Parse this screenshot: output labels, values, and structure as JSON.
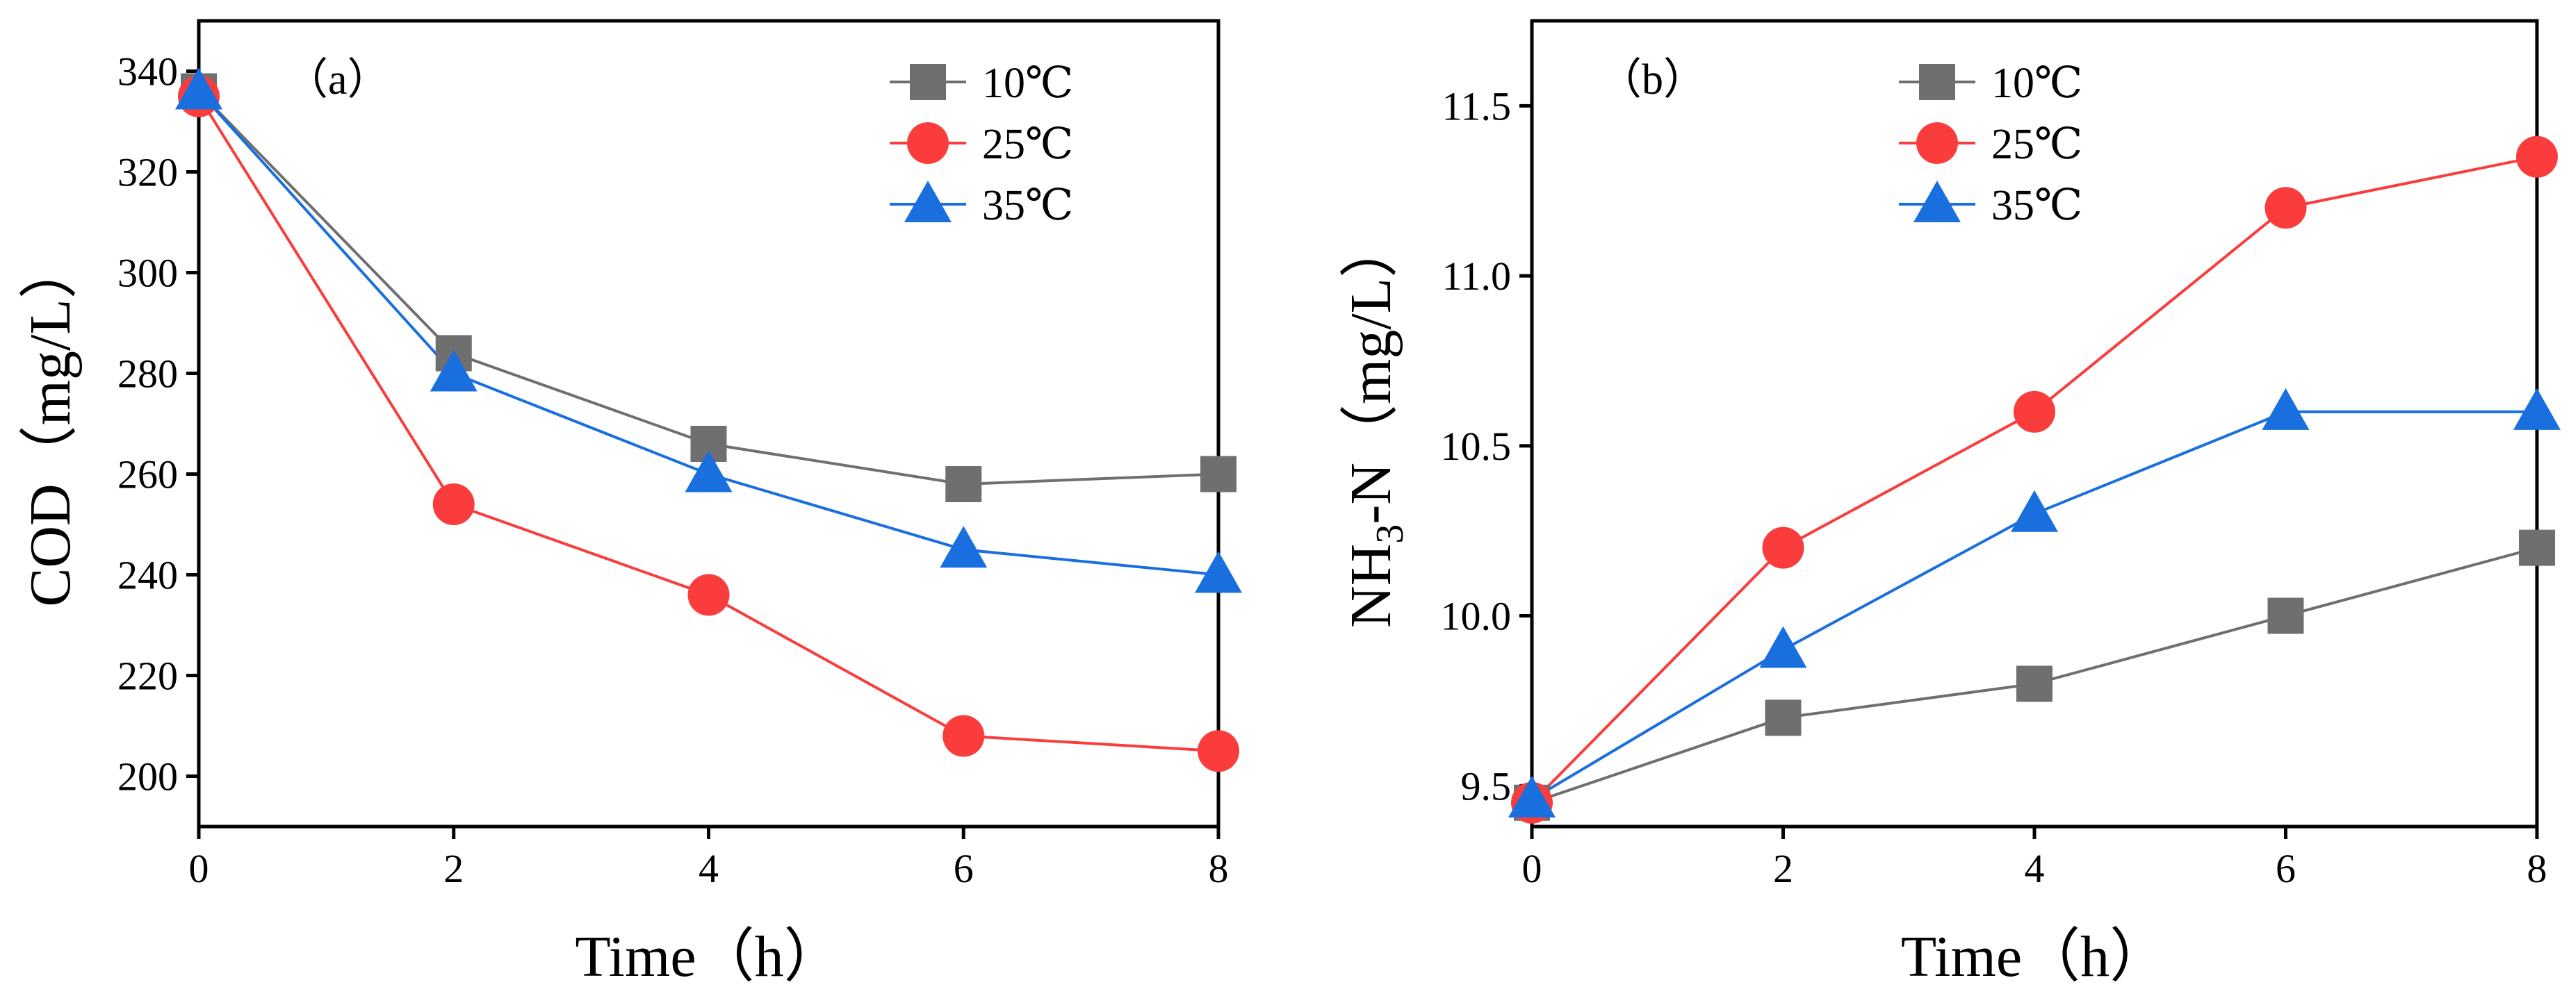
{
  "colors": {
    "10C": "#6f6f6f",
    "25C": "#fa3c3c",
    "35C": "#1a6fdf"
  },
  "chart_data": [
    {
      "type": "line",
      "panel_label": "（a）",
      "xlabel": "Time（h）",
      "ylabel": "COD（mg/L）",
      "xlim": [
        0,
        8
      ],
      "ylim": [
        190,
        350
      ],
      "x_ticks": [
        0,
        2,
        4,
        6,
        8
      ],
      "y_ticks": [
        200,
        220,
        240,
        260,
        280,
        300,
        320,
        340
      ],
      "legend_position": "top-right",
      "x": [
        0,
        2,
        4,
        6,
        8
      ],
      "series": [
        {
          "name": "10℃",
          "marker": "square",
          "color": "#6f6f6f",
          "values": [
            336,
            284,
            266,
            258,
            260
          ]
        },
        {
          "name": "25℃",
          "marker": "circle",
          "color": "#fa3c3c",
          "values": [
            335,
            254,
            236,
            208,
            205
          ]
        },
        {
          "name": "35℃",
          "marker": "triangle",
          "color": "#1a6fdf",
          "values": [
            336,
            280,
            260,
            245,
            240
          ]
        }
      ]
    },
    {
      "type": "line",
      "panel_label": "（b）",
      "xlabel": "Time（h）",
      "ylabel_main": "NH",
      "ylabel_sub": "3",
      "ylabel_rest": "-N（mg/L）",
      "xlim": [
        0,
        8
      ],
      "ylim": [
        9.38,
        11.75
      ],
      "x_ticks": [
        0,
        2,
        4,
        6,
        8
      ],
      "y_ticks": [
        9.5,
        10.0,
        10.5,
        11.0,
        11.5
      ],
      "y_tick_labels": [
        "9.5",
        "10.0",
        "10.5",
        "11.0",
        "11.5"
      ],
      "legend_position": "top-left",
      "x": [
        0,
        2,
        4,
        6,
        8
      ],
      "series": [
        {
          "name": "10℃",
          "marker": "square",
          "color": "#6f6f6f",
          "values": [
            9.45,
            9.7,
            9.8,
            10.0,
            10.2
          ]
        },
        {
          "name": "25℃",
          "marker": "circle",
          "color": "#fa3c3c",
          "values": [
            9.45,
            10.2,
            10.6,
            11.2,
            11.35
          ]
        },
        {
          "name": "35℃",
          "marker": "triangle",
          "color": "#1a6fdf",
          "values": [
            9.46,
            9.9,
            10.3,
            10.6,
            10.6
          ]
        }
      ]
    }
  ]
}
